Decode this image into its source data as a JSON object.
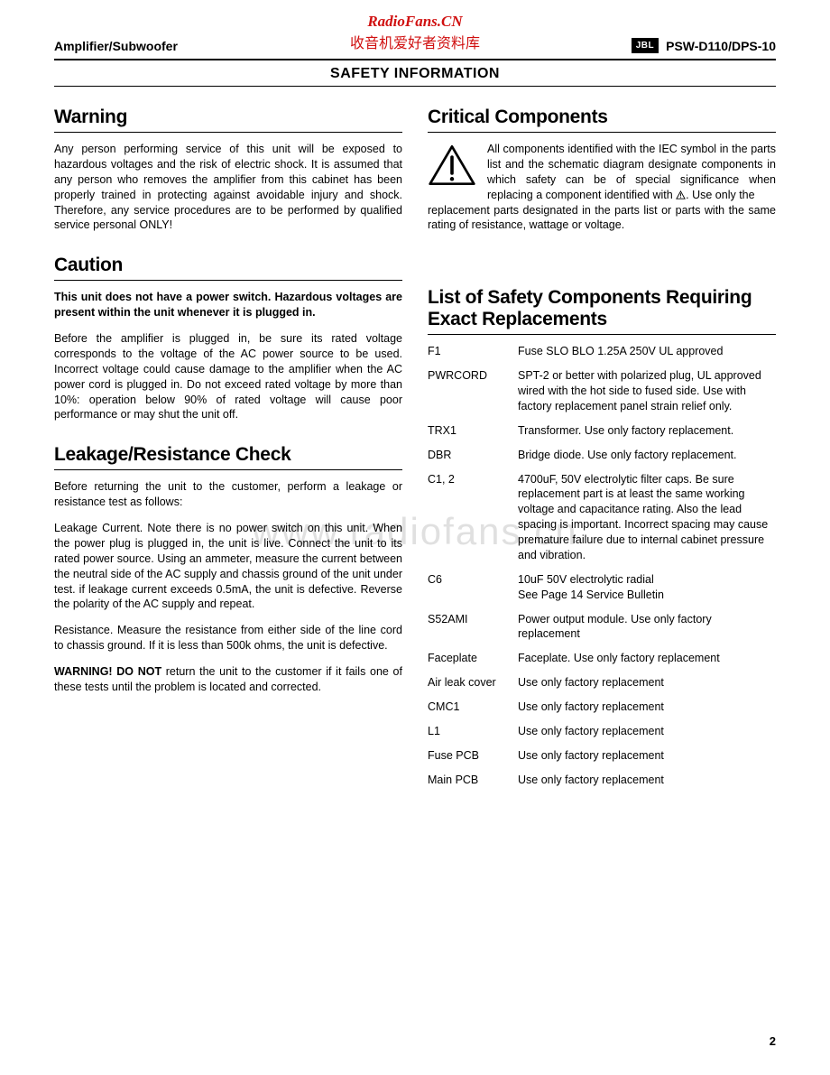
{
  "watermark": {
    "top_line1": "RadioFans.CN",
    "top_line2": "收音机爱好者资料库",
    "center": "www.radiofans.cn"
  },
  "header": {
    "left": "Amplifier/Subwoofer",
    "brand": "JBL",
    "model": "PSW-D110/DPS-10"
  },
  "page_title": "SAFETY INFORMATION",
  "page_number": "2",
  "left_column": {
    "warning": {
      "title": "Warning",
      "p1": "Any person performing service of this unit will be exposed to hazardous voltages and the risk of electric shock.  It is assumed that any person who removes the amplifier from this cabinet has  been properly trained in protecting against avoidable injury and shock.  Therefore, any service procedures are to be performed by qualified  service personal ONLY!"
    },
    "caution": {
      "title": "Caution",
      "p_bold": "This unit does not have a power switch. Hazardous voltages are present within the unit whenever it is plugged in.",
      "p2": "Before the amplifier is plugged in, be sure its rated voltage corresponds to the voltage of the AC power source to be used.  Incorrect voltage could cause damage to the amplifier when the AC power cord is plugged in. Do not exceed rated voltage by more than 10%: operation below 90% of rated voltage will cause poor performance or may shut the unit off."
    },
    "leakage": {
      "title": "Leakage/Resistance Check",
      "p1": "Before returning the unit to the customer, perform a leakage or resistance test as follows:",
      "p2": "Leakage Current. Note there is no power switch on this unit. When the power plug is plugged in, the unit is live. Connect the unit to its rated power source. Using an ammeter, measure the current between the neutral side of the AC supply and chassis ground of the unit under test.  if leakage current exceeds 0.5mA, the unit is defective. Reverse the polarity of the AC supply and repeat.",
      "p3": "Resistance. Measure the resistance from either side of the line cord to chassis ground. If it is less than 500k ohms, the unit is defective.",
      "p4_prefix": "WARNING! DO NOT",
      "p4_rest": " return the unit to the customer if it fails one of these tests until the problem is located and corrected."
    }
  },
  "right_column": {
    "critical": {
      "title": "Critical Components",
      "float_text": "All components identified with the IEC symbol in the parts list and the schematic diagram designate components in which safety can be of special significance when replacing a component identified with ",
      "after_icon": ". Use only the",
      "follow": "replacement parts designated in the parts list or parts with the same rating of resistance, wattage or voltage."
    },
    "list": {
      "title": "List of Safety Components Requiring Exact Replacements",
      "rows": [
        {
          "ref": "F1",
          "desc": "Fuse SLO BLO 1.25A 250V UL approved"
        },
        {
          "ref": "PWRCORD",
          "desc": "SPT-2 or better with polarized plug, UL approved wired with the hot side to fused side. Use with factory replacement panel strain relief only."
        },
        {
          "ref": "TRX1",
          "desc": "Transformer. Use only factory replacement."
        },
        {
          "ref": "DBR",
          "desc": "Bridge diode. Use only factory replacement."
        },
        {
          "ref": "C1, 2",
          "desc": "4700uF, 50V electrolytic filter caps. Be sure replacement part is at least the same working voltage and capacitance rating. Also the lead spacing is important. Incorrect spacing may cause premature failure due to internal cabinet pressure and vibration."
        },
        {
          "ref": "C6",
          "desc": "10uF 50V electrolytic radial\nSee Page 14 Service Bulletin"
        },
        {
          "ref": "S52AMI",
          "desc": "Power output module. Use only factory replacement"
        },
        {
          "ref": "Faceplate",
          "desc": "Faceplate. Use only factory replacement"
        },
        {
          "ref": "Air leak cover",
          "desc": "Use only factory replacement"
        },
        {
          "ref": "CMC1",
          "desc": "Use only factory replacement"
        },
        {
          "ref": "L1",
          "desc": "Use only factory replacement"
        },
        {
          "ref": "Fuse PCB",
          "desc": "Use only factory replacement"
        },
        {
          "ref": "Main PCB",
          "desc": "Use only factory replacement"
        }
      ]
    }
  }
}
